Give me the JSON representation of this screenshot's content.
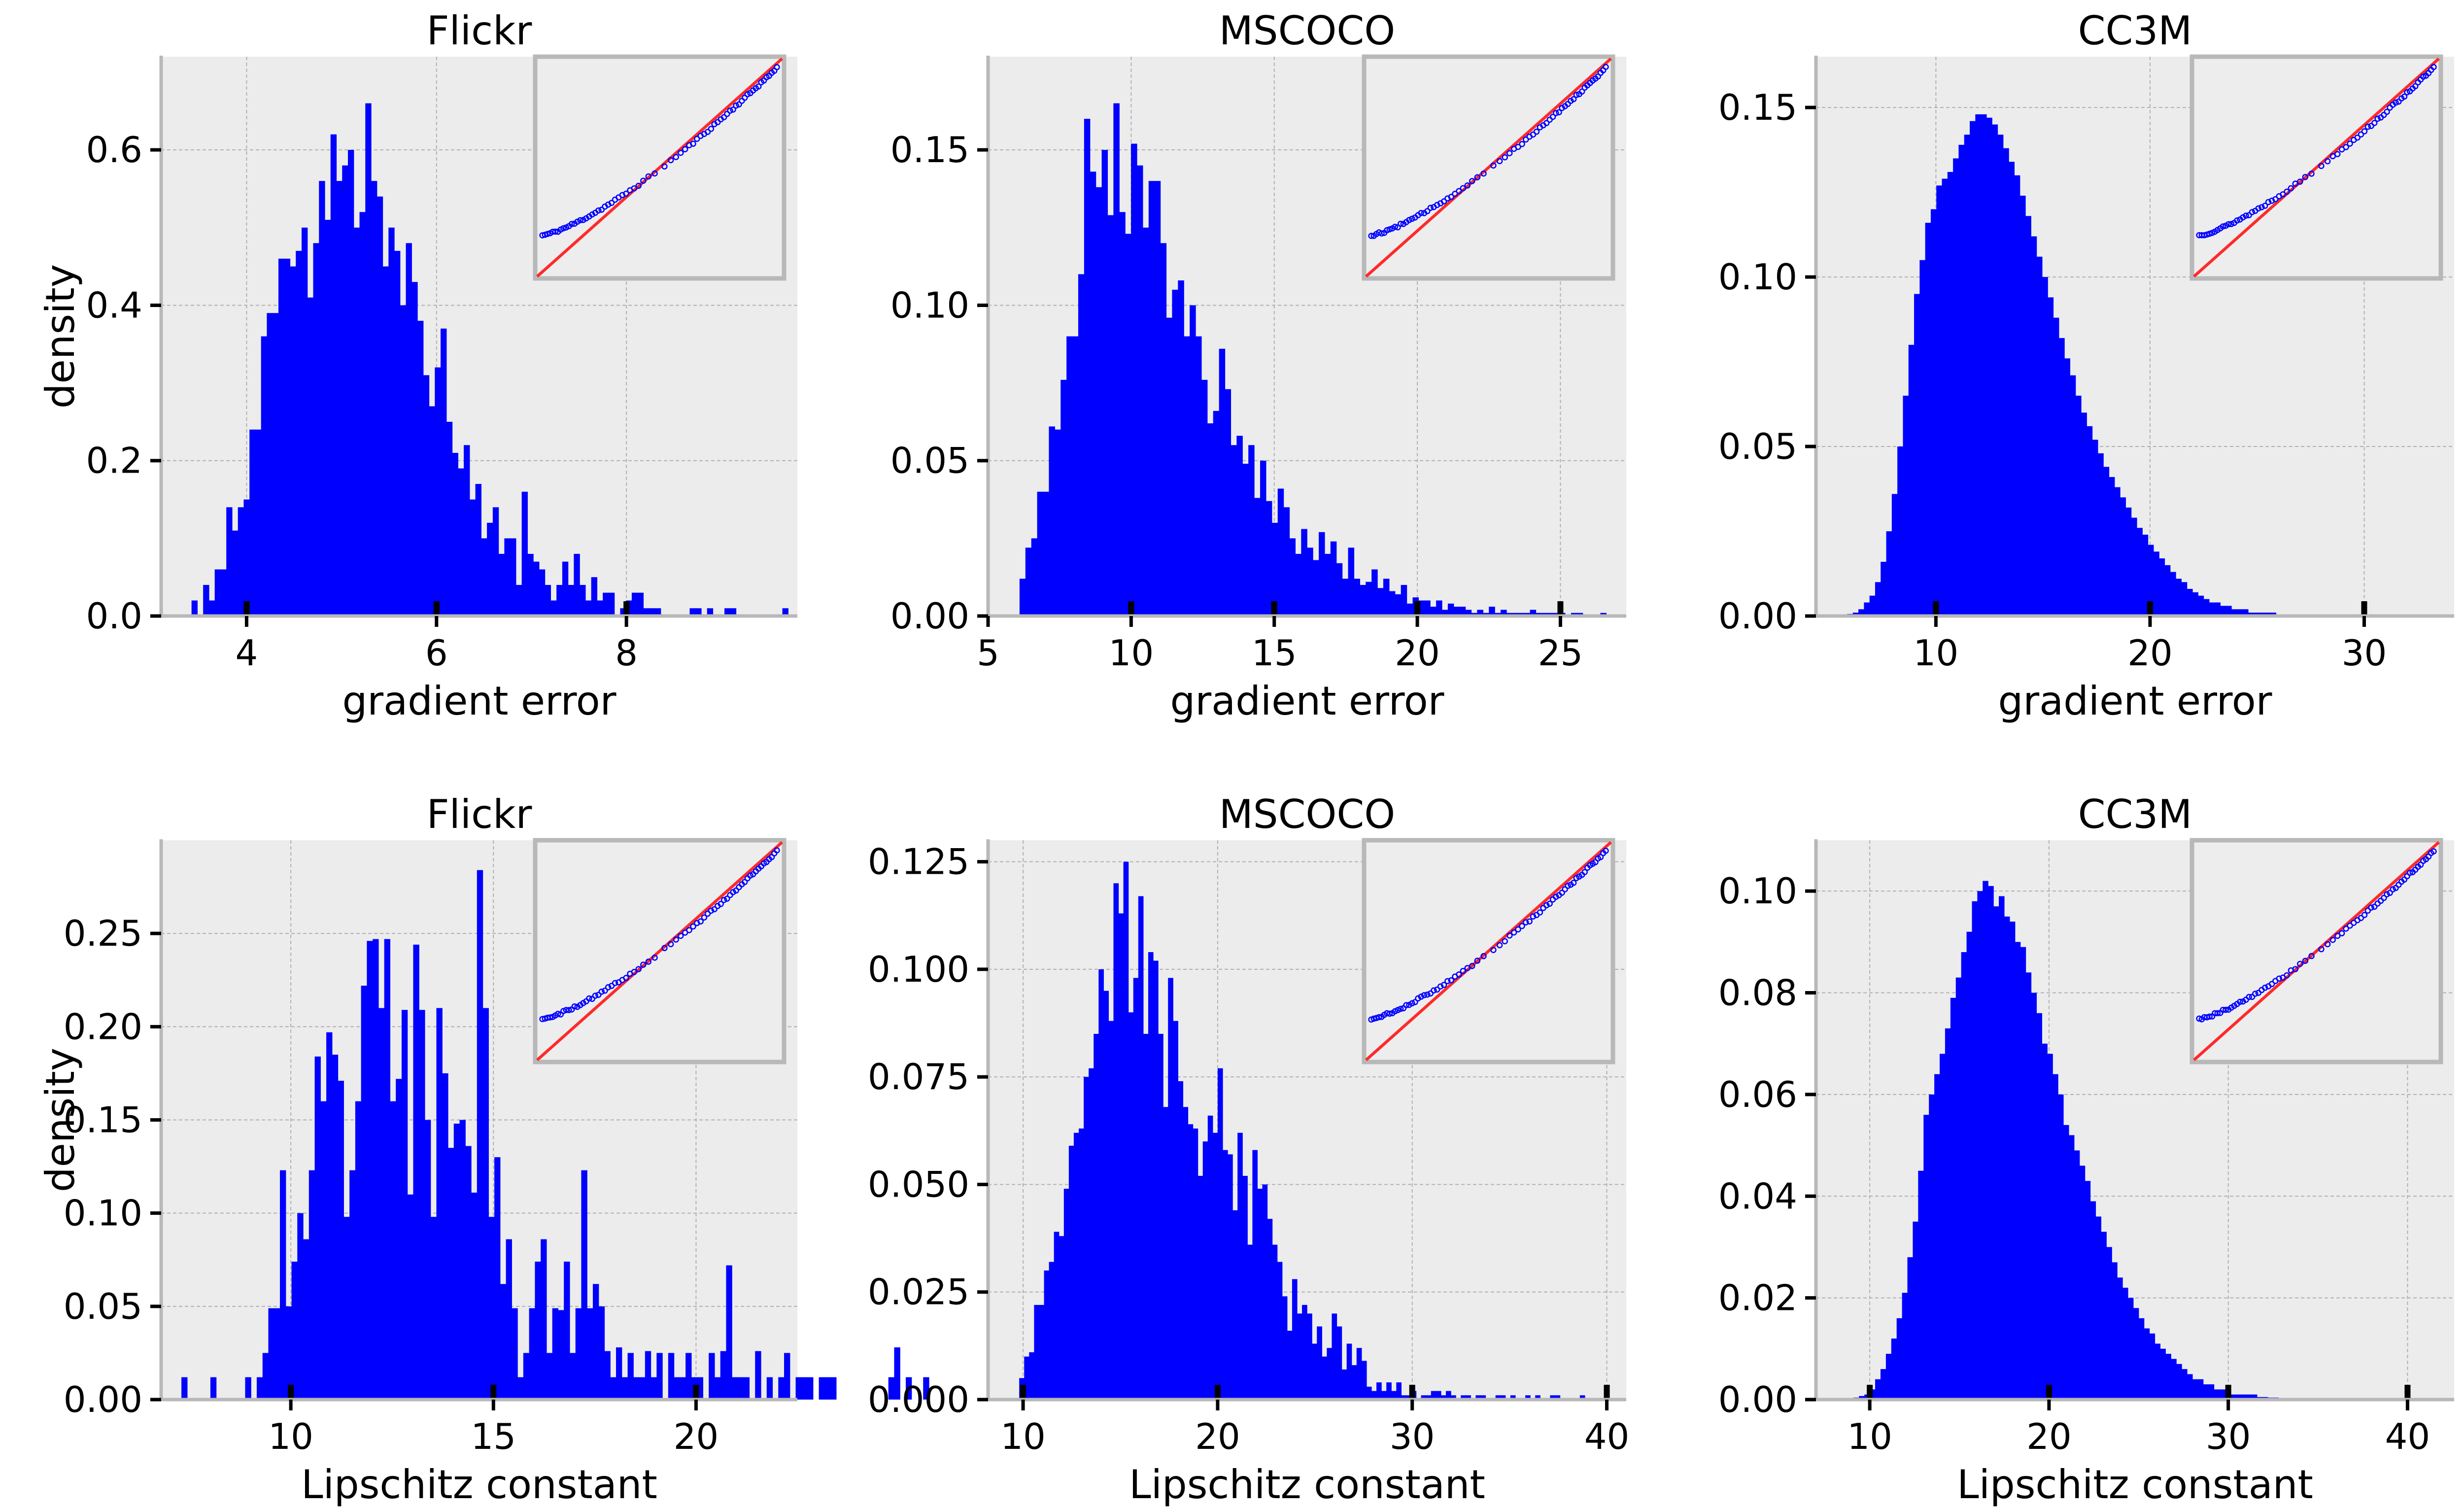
{
  "colors": {
    "bar": "#0000ff",
    "panel_bg": "#ececec",
    "grid": "#b0b0b0",
    "frame": "#b8b8b8",
    "fit_line": "#ff2a2a",
    "qq_points": "#0000ff",
    "tick_mark": "#000000"
  },
  "chart_data": [
    {
      "type": "bar",
      "title": "Flickr",
      "xlabel": "gradient error",
      "ylabel": "density",
      "xlim": [
        3.1,
        9.8
      ],
      "ylim": [
        0,
        0.72
      ],
      "xticks": [
        4,
        6,
        8
      ],
      "xtick_labels": [
        "4",
        "6",
        "8"
      ],
      "yticks": [
        0,
        0.2,
        0.4,
        0.6
      ],
      "ytick_labels": [
        "0.0",
        "0.2",
        "0.4",
        "0.6"
      ],
      "bins": {
        "x_start": 3.42,
        "width": 0.061,
        "values": [
          0.02,
          0,
          0.04,
          0.02,
          0.06,
          0.06,
          0.14,
          0.11,
          0.14,
          0.15,
          0.24,
          0.24,
          0.36,
          0.39,
          0.39,
          0.46,
          0.46,
          0.45,
          0.47,
          0.5,
          0.41,
          0.48,
          0.56,
          0.51,
          0.62,
          0.56,
          0.58,
          0.6,
          0.5,
          0.52,
          0.66,
          0.56,
          0.54,
          0.45,
          0.5,
          0.47,
          0.4,
          0.48,
          0.43,
          0.38,
          0.31,
          0.27,
          0.32,
          0.37,
          0.25,
          0.21,
          0.19,
          0.22,
          0.15,
          0.17,
          0.1,
          0.12,
          0.14,
          0.08,
          0.1,
          0.1,
          0.04,
          0.16,
          0.08,
          0.07,
          0.06,
          0.04,
          0.02,
          0.04,
          0.07,
          0.04,
          0.08,
          0.04,
          0.02,
          0.05,
          0.02,
          0.03,
          0.03,
          0,
          0.01,
          0.02,
          0.03,
          0.03,
          0.01,
          0.01,
          0.01,
          0,
          0,
          0,
          0,
          0,
          0.01,
          0.01,
          0,
          0.01,
          0,
          0,
          0.01,
          0.01,
          0,
          0,
          0,
          0,
          0,
          0,
          0,
          0,
          0.01
        ]
      },
      "x_marks": [
        4,
        6,
        8
      ],
      "inset": {
        "type": "qq-plot",
        "x_min": -3.5,
        "x_max": 2.3
      }
    },
    {
      "type": "bar",
      "title": "MSCOCO",
      "xlabel": "gradient error",
      "xlim": [
        5,
        27.3
      ],
      "ylim": [
        0,
        0.18
      ],
      "xticks": [
        5,
        10,
        15,
        20,
        25
      ],
      "xtick_labels": [
        "5",
        "10",
        "15",
        "20",
        "25"
      ],
      "yticks": [
        0,
        0.05,
        0.1,
        0.15
      ],
      "ytick_labels": [
        "0.00",
        "0.05",
        "0.10",
        "0.15"
      ],
      "bins": {
        "x_start": 6.1,
        "width": 0.205,
        "values": [
          0.012,
          0.022,
          0.025,
          0.04,
          0.04,
          0.061,
          0.06,
          0.076,
          0.09,
          0.09,
          0.11,
          0.16,
          0.143,
          0.138,
          0.15,
          0.129,
          0.165,
          0.13,
          0.123,
          0.152,
          0.145,
          0.125,
          0.14,
          0.14,
          0.12,
          0.096,
          0.105,
          0.108,
          0.09,
          0.1,
          0.09,
          0.076,
          0.062,
          0.066,
          0.086,
          0.073,
          0.055,
          0.058,
          0.049,
          0.055,
          0.038,
          0.05,
          0.037,
          0.03,
          0.041,
          0.035,
          0.025,
          0.02,
          0.028,
          0.022,
          0.018,
          0.027,
          0.02,
          0.024,
          0.017,
          0.012,
          0.022,
          0.012,
          0.01,
          0.011,
          0.015,
          0.009,
          0.012,
          0.008,
          0.007,
          0.01,
          0.004,
          0.006,
          0.005,
          0.005,
          0.003,
          0.005,
          0.002,
          0.004,
          0.003,
          0.003,
          0.002,
          0.001,
          0.002,
          0.001,
          0.003,
          0.001,
          0.002,
          0.001,
          0.001,
          0.001,
          0.001,
          0.002,
          0.001,
          0.001,
          0.001,
          0.001,
          0.001,
          0,
          0.001,
          0.001,
          0,
          0,
          0,
          0.001
        ]
      },
      "x_marks": [
        10,
        15,
        20,
        25
      ],
      "inset": {
        "type": "qq-plot",
        "x_min": -3.8,
        "x_max": 3.8
      }
    },
    {
      "type": "bar",
      "title": "CC3M",
      "xlabel": "gradient error",
      "xlim": [
        4.4,
        34.2
      ],
      "ylim": [
        0,
        0.165
      ],
      "xticks": [
        10,
        20,
        30
      ],
      "xtick_labels": [
        "10",
        "20",
        "30"
      ],
      "yticks": [
        0,
        0.05,
        0.1,
        0.15
      ],
      "ytick_labels": [
        "0.00",
        "0.05",
        "0.10",
        "0.15"
      ],
      "bins": {
        "x_start": 5.6,
        "width": 0.26,
        "values": [
          0.0003,
          0.0006,
          0.001,
          0.002,
          0.004,
          0.006,
          0.01,
          0.016,
          0.025,
          0.036,
          0.05,
          0.065,
          0.08,
          0.095,
          0.105,
          0.116,
          0.12,
          0.127,
          0.129,
          0.131,
          0.135,
          0.139,
          0.142,
          0.146,
          0.148,
          0.148,
          0.147,
          0.145,
          0.142,
          0.138,
          0.134,
          0.13,
          0.124,
          0.118,
          0.112,
          0.106,
          0.1,
          0.094,
          0.088,
          0.082,
          0.076,
          0.071,
          0.065,
          0.06,
          0.056,
          0.052,
          0.048,
          0.044,
          0.041,
          0.038,
          0.035,
          0.032,
          0.029,
          0.026,
          0.024,
          0.021,
          0.019,
          0.017,
          0.015,
          0.013,
          0.011,
          0.01,
          0.008,
          0.007,
          0.006,
          0.005,
          0.004,
          0.004,
          0.003,
          0.003,
          0.002,
          0.002,
          0.002,
          0.001,
          0.001,
          0.001,
          0.001,
          0.001,
          0.0005,
          0.0005,
          0.0004,
          0.0004,
          0.0003,
          0.0003,
          0.0002,
          0.0002,
          0.0002,
          0.0001,
          0.0001,
          0.0001,
          0.0001,
          0.0001,
          0.0001,
          0,
          0,
          0,
          0,
          0,
          0,
          0
        ]
      },
      "x_marks": [
        10,
        20,
        30
      ],
      "inset": {
        "type": "qq-plot",
        "x_min": -3.7,
        "x_max": 2.8
      }
    },
    {
      "type": "bar",
      "title": "Flickr",
      "xlabel": "Lipschitz constant",
      "ylabel": "density",
      "xlim": [
        6.8,
        22.5
      ],
      "ylim": [
        0,
        0.3
      ],
      "xticks": [
        10,
        15,
        20
      ],
      "xtick_labels": [
        "10",
        "15",
        "20"
      ],
      "yticks": [
        0,
        0.05,
        0.1,
        0.15,
        0.2,
        0.25
      ],
      "ytick_labels": [
        "0.00",
        "0.05",
        "0.10",
        "0.15",
        "0.20",
        "0.25"
      ],
      "bins": {
        "x_start": 7.3,
        "width": 0.143,
        "values": [
          0.012,
          0,
          0,
          0,
          0,
          0.012,
          0,
          0,
          0,
          0,
          0,
          0.012,
          0,
          0.012,
          0.025,
          0.049,
          0.049,
          0.123,
          0.05,
          0.074,
          0.1,
          0.086,
          0.123,
          0.184,
          0.16,
          0.197,
          0.185,
          0.171,
          0.098,
          0.123,
          0.16,
          0.222,
          0.246,
          0.247,
          0.21,
          0.247,
          0.16,
          0.172,
          0.209,
          0.11,
          0.244,
          0.209,
          0.15,
          0.098,
          0.21,
          0.175,
          0.135,
          0.148,
          0.15,
          0.136,
          0.111,
          0.284,
          0.21,
          0.098,
          0.13,
          0.062,
          0.086,
          0.049,
          0.012,
          0.025,
          0.049,
          0.074,
          0.086,
          0.025,
          0.049,
          0.048,
          0.074,
          0.025,
          0.049,
          0.123,
          0.049,
          0.062,
          0.05,
          0.026,
          0.012,
          0.028,
          0.012,
          0.025,
          0.012,
          0.012,
          0.026,
          0.012,
          0.025,
          0,
          0.025,
          0.012,
          0.012,
          0.025,
          0.012,
          0.012,
          0,
          0.025,
          0.012,
          0.026,
          0.072,
          0.012,
          0.012,
          0.012,
          0,
          0.026,
          0,
          0.012,
          0,
          0.012,
          0.025,
          0,
          0.012,
          0.012,
          0.012,
          0,
          0.012,
          0.012,
          0.012,
          0,
          0,
          0,
          0,
          0,
          0,
          0,
          0,
          0,
          0.012,
          0.028,
          0,
          0.012,
          0,
          0,
          0.012,
          0,
          0,
          0,
          0,
          0,
          0,
          0,
          0,
          0,
          0,
          0,
          0,
          0.025
        ]
      },
      "x_marks": [
        10,
        15,
        20
      ],
      "inset": {
        "type": "qq-plot",
        "x_min": -3.2,
        "x_max": 2.4
      }
    },
    {
      "type": "bar",
      "title": "MSCOCO",
      "xlabel": "Lipschitz constant",
      "xlim": [
        8.2,
        41.0
      ],
      "ylim": [
        0,
        0.13
      ],
      "xticks": [
        10,
        20,
        30,
        40
      ],
      "xtick_labels": [
        "10",
        "20",
        "30",
        "40"
      ],
      "yticks": [
        0,
        0.025,
        0.05,
        0.075,
        0.1,
        0.125
      ],
      "ytick_labels": [
        "0.000",
        "0.025",
        "0.050",
        "0.075",
        "0.100",
        "0.125"
      ],
      "bins": {
        "x_start": 9.8,
        "width": 0.255,
        "values": [
          0.005,
          0.01,
          0.011,
          0.022,
          0.022,
          0.03,
          0.032,
          0.039,
          0.038,
          0.049,
          0.059,
          0.062,
          0.063,
          0.075,
          0.077,
          0.085,
          0.1,
          0.095,
          0.088,
          0.12,
          0.113,
          0.125,
          0.09,
          0.098,
          0.117,
          0.085,
          0.104,
          0.102,
          0.085,
          0.068,
          0.098,
          0.088,
          0.074,
          0.068,
          0.064,
          0.063,
          0.052,
          0.06,
          0.066,
          0.062,
          0.077,
          0.058,
          0.057,
          0.044,
          0.062,
          0.052,
          0.036,
          0.058,
          0.049,
          0.05,
          0.042,
          0.036,
          0.032,
          0.024,
          0.016,
          0.028,
          0.02,
          0.022,
          0.02,
          0.013,
          0.017,
          0.01,
          0.012,
          0.02,
          0.017,
          0.007,
          0.013,
          0.008,
          0.012,
          0.009,
          0.003,
          0.002,
          0.004,
          0.002,
          0.004,
          0.002,
          0.004,
          0.001,
          0.001,
          0.002,
          0,
          0.001,
          0.001,
          0.002,
          0.002,
          0.001,
          0.002,
          0.001,
          0,
          0.001,
          0.001,
          0,
          0.001,
          0.001,
          0,
          0,
          0.001,
          0.001,
          0,
          0.001,
          0,
          0,
          0.001,
          0,
          0.001,
          0,
          0,
          0.001,
          0.001,
          0,
          0,
          0,
          0,
          0.001
        ]
      },
      "x_marks": [
        10,
        20,
        30,
        40
      ],
      "inset": {
        "type": "qq-plot",
        "x_min": -3.5,
        "x_max": 3.2
      }
    },
    {
      "type": "bar",
      "title": "CC3M",
      "xlabel": "Lipschitz constant",
      "xlim": [
        7.0,
        42.6
      ],
      "ylim": [
        0,
        0.11
      ],
      "xticks": [
        10,
        20,
        30,
        40
      ],
      "xtick_labels": [
        "10",
        "20",
        "30",
        "40"
      ],
      "yticks": [
        0,
        0.02,
        0.04,
        0.06,
        0.08,
        0.1
      ],
      "ytick_labels": [
        "0.00",
        "0.02",
        "0.04",
        "0.06",
        "0.08",
        "0.10"
      ],
      "bins": {
        "x_start": 8.8,
        "width": 0.3,
        "values": [
          0.0002,
          0.0004,
          0.0007,
          0.001,
          0.002,
          0.004,
          0.006,
          0.009,
          0.012,
          0.016,
          0.021,
          0.028,
          0.035,
          0.045,
          0.056,
          0.06,
          0.064,
          0.068,
          0.073,
          0.079,
          0.083,
          0.088,
          0.092,
          0.098,
          0.1,
          0.102,
          0.101,
          0.097,
          0.099,
          0.095,
          0.094,
          0.09,
          0.089,
          0.084,
          0.08,
          0.076,
          0.07,
          0.068,
          0.064,
          0.06,
          0.054,
          0.052,
          0.049,
          0.046,
          0.043,
          0.039,
          0.036,
          0.033,
          0.03,
          0.027,
          0.024,
          0.022,
          0.02,
          0.018,
          0.016,
          0.014,
          0.013,
          0.011,
          0.01,
          0.009,
          0.008,
          0.007,
          0.006,
          0.005,
          0.004,
          0.004,
          0.003,
          0.003,
          0.002,
          0.002,
          0.002,
          0.001,
          0.001,
          0.001,
          0.001,
          0.001,
          0.0005,
          0.0005,
          0.0004,
          0.0004,
          0.0003,
          0.0003,
          0.0002,
          0.0002,
          0.0002,
          0.0001,
          0.0001,
          0.0001,
          0.0001,
          0.0001,
          0.0001,
          0.0001,
          0,
          0,
          0,
          0,
          0,
          0,
          0,
          0,
          0,
          0,
          0,
          0,
          0,
          0,
          0,
          0,
          0,
          0
        ]
      },
      "x_marks": [
        10,
        20,
        30,
        40
      ],
      "inset": {
        "type": "qq-plot",
        "x_min": -3.5,
        "x_max": 2.9
      }
    }
  ]
}
